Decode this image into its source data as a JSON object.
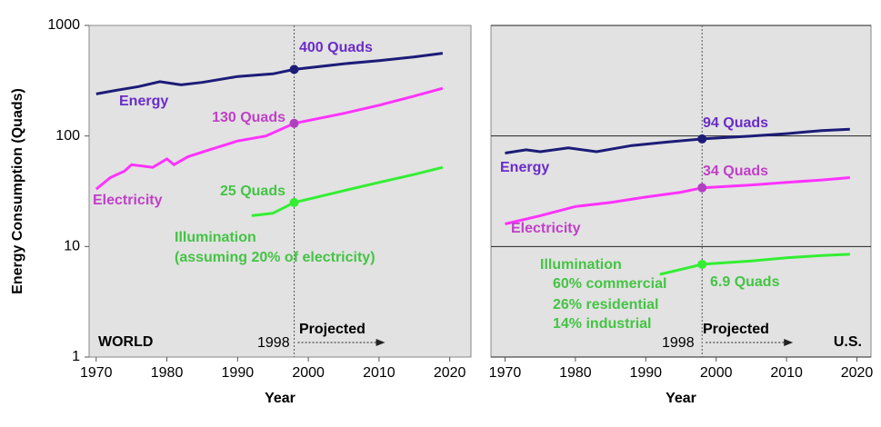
{
  "chart_data": [
    {
      "type": "line",
      "log_y": true,
      "grid": false,
      "show_ytick_labels": true,
      "ylabel": "Energy Consumption (Quads)",
      "xlabel": "Year",
      "xlim": [
        1969,
        2023
      ],
      "xticks": [
        1970,
        1980,
        1990,
        2000,
        2010,
        2020
      ],
      "ylim": [
        1,
        1000
      ],
      "yticks": [
        1,
        10,
        100,
        1000
      ],
      "region": "WORLD",
      "divider": 1998,
      "projected": "Projected",
      "series": [
        {
          "name": "Energy",
          "color": "#1c1c78",
          "label_color": "#6a2cc8",
          "x": [
            1970,
            1973,
            1976,
            1979,
            1982,
            1985,
            1990,
            1995,
            1998,
            2005,
            2010,
            2015,
            2019
          ],
          "values": [
            240,
            260,
            280,
            310,
            290,
            305,
            345,
            365,
            400,
            450,
            480,
            520,
            560
          ]
        },
        {
          "name": "Electricity",
          "color": "#ff33ff",
          "label_color": "#c040c8",
          "x": [
            1970,
            1972,
            1974,
            1975,
            1978,
            1980,
            1981,
            1983,
            1986,
            1990,
            1994,
            1998,
            2005,
            2010,
            2015,
            2019
          ],
          "values": [
            33,
            42,
            48,
            55,
            52,
            62,
            55,
            65,
            75,
            90,
            100,
            130,
            160,
            190,
            230,
            270
          ]
        },
        {
          "name": "Illumination",
          "color": "#33ee33",
          "label_color": "#44c444",
          "x": [
            1992,
            1995,
            1998,
            2005,
            2010,
            2015,
            2019
          ],
          "values": [
            19,
            20,
            25,
            32,
            38,
            45,
            52
          ]
        }
      ],
      "markers": [
        {
          "label": "400 Quads",
          "value": 400
        },
        {
          "label": "130 Quads",
          "value": 130
        },
        {
          "label": "25 Quads",
          "value": 25
        }
      ],
      "notes": [
        "(assuming 20% of electricity)"
      ]
    },
    {
      "type": "line",
      "log_y": true,
      "grid": true,
      "show_ytick_labels": false,
      "xlabel": "Year",
      "xlim": [
        1968,
        2022
      ],
      "xticks": [
        1970,
        1980,
        1990,
        2000,
        2010,
        2020
      ],
      "ylim": [
        1,
        1000
      ],
      "yticks": [
        1,
        10,
        100,
        1000
      ],
      "region": "U.S.",
      "divider": 1998,
      "projected": "Projected",
      "series": [
        {
          "name": "Energy",
          "color": "#1c1c78",
          "label_color": "#6a2cc8",
          "x": [
            1970,
            1973,
            1975,
            1979,
            1983,
            1988,
            1993,
            1998,
            2005,
            2010,
            2015,
            2019
          ],
          "values": [
            70,
            75,
            72,
            78,
            72,
            82,
            88,
            94,
            100,
            105,
            112,
            115
          ]
        },
        {
          "name": "Electricity",
          "color": "#ff33ff",
          "label_color": "#c040c8",
          "x": [
            1970,
            1975,
            1980,
            1985,
            1990,
            1995,
            1998,
            2005,
            2010,
            2015,
            2019
          ],
          "values": [
            16,
            19,
            23,
            25,
            28,
            31,
            34,
            36,
            38,
            40,
            42
          ]
        },
        {
          "name": "Illumination",
          "color": "#33ee33",
          "label_color": "#44c444",
          "x": [
            1992,
            1995,
            1998,
            2005,
            2010,
            2015,
            2019
          ],
          "values": [
            5.6,
            6.2,
            6.9,
            7.4,
            7.9,
            8.3,
            8.5
          ]
        }
      ],
      "markers": [
        {
          "label": "94 Quads",
          "value": 94
        },
        {
          "label": "34 Quads",
          "value": 34
        },
        {
          "label": "6.9 Quads",
          "value": 6.9
        }
      ],
      "notes": [
        "60% commercial",
        "26% residential",
        "14% industrial"
      ]
    }
  ]
}
